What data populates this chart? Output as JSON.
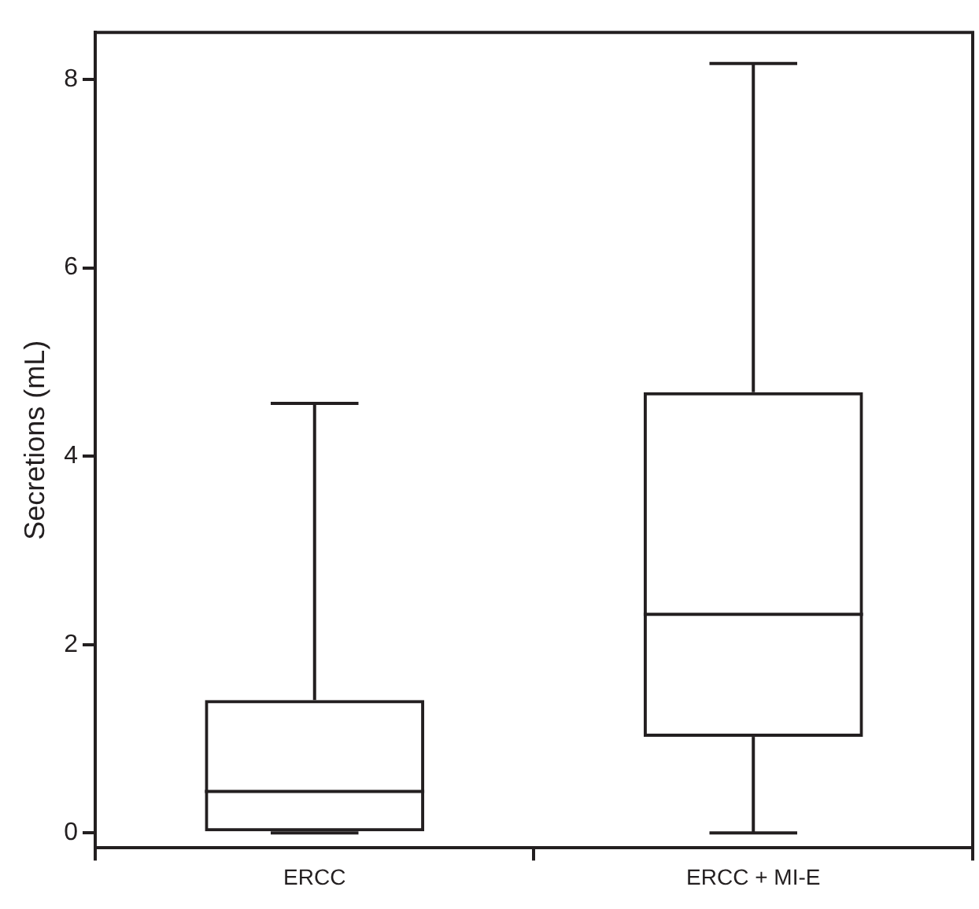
{
  "chart_data": {
    "type": "box",
    "ylabel": "Secretions (mL)",
    "categories": [
      "ERCC",
      "ERCC + MI-E"
    ],
    "boxes": [
      {
        "low": 0,
        "q1": 0,
        "median": 0.44,
        "q3": 1.41,
        "high": 4.56
      },
      {
        "low": 0,
        "q1": 1.02,
        "median": 2.32,
        "q3": 4.68,
        "high": 8.17
      }
    ],
    "color": "#231f20",
    "ylim": [
      -0.16,
      8.5
    ],
    "yticks": [
      0,
      2,
      4,
      6,
      8
    ],
    "grid": false,
    "legend": false
  }
}
